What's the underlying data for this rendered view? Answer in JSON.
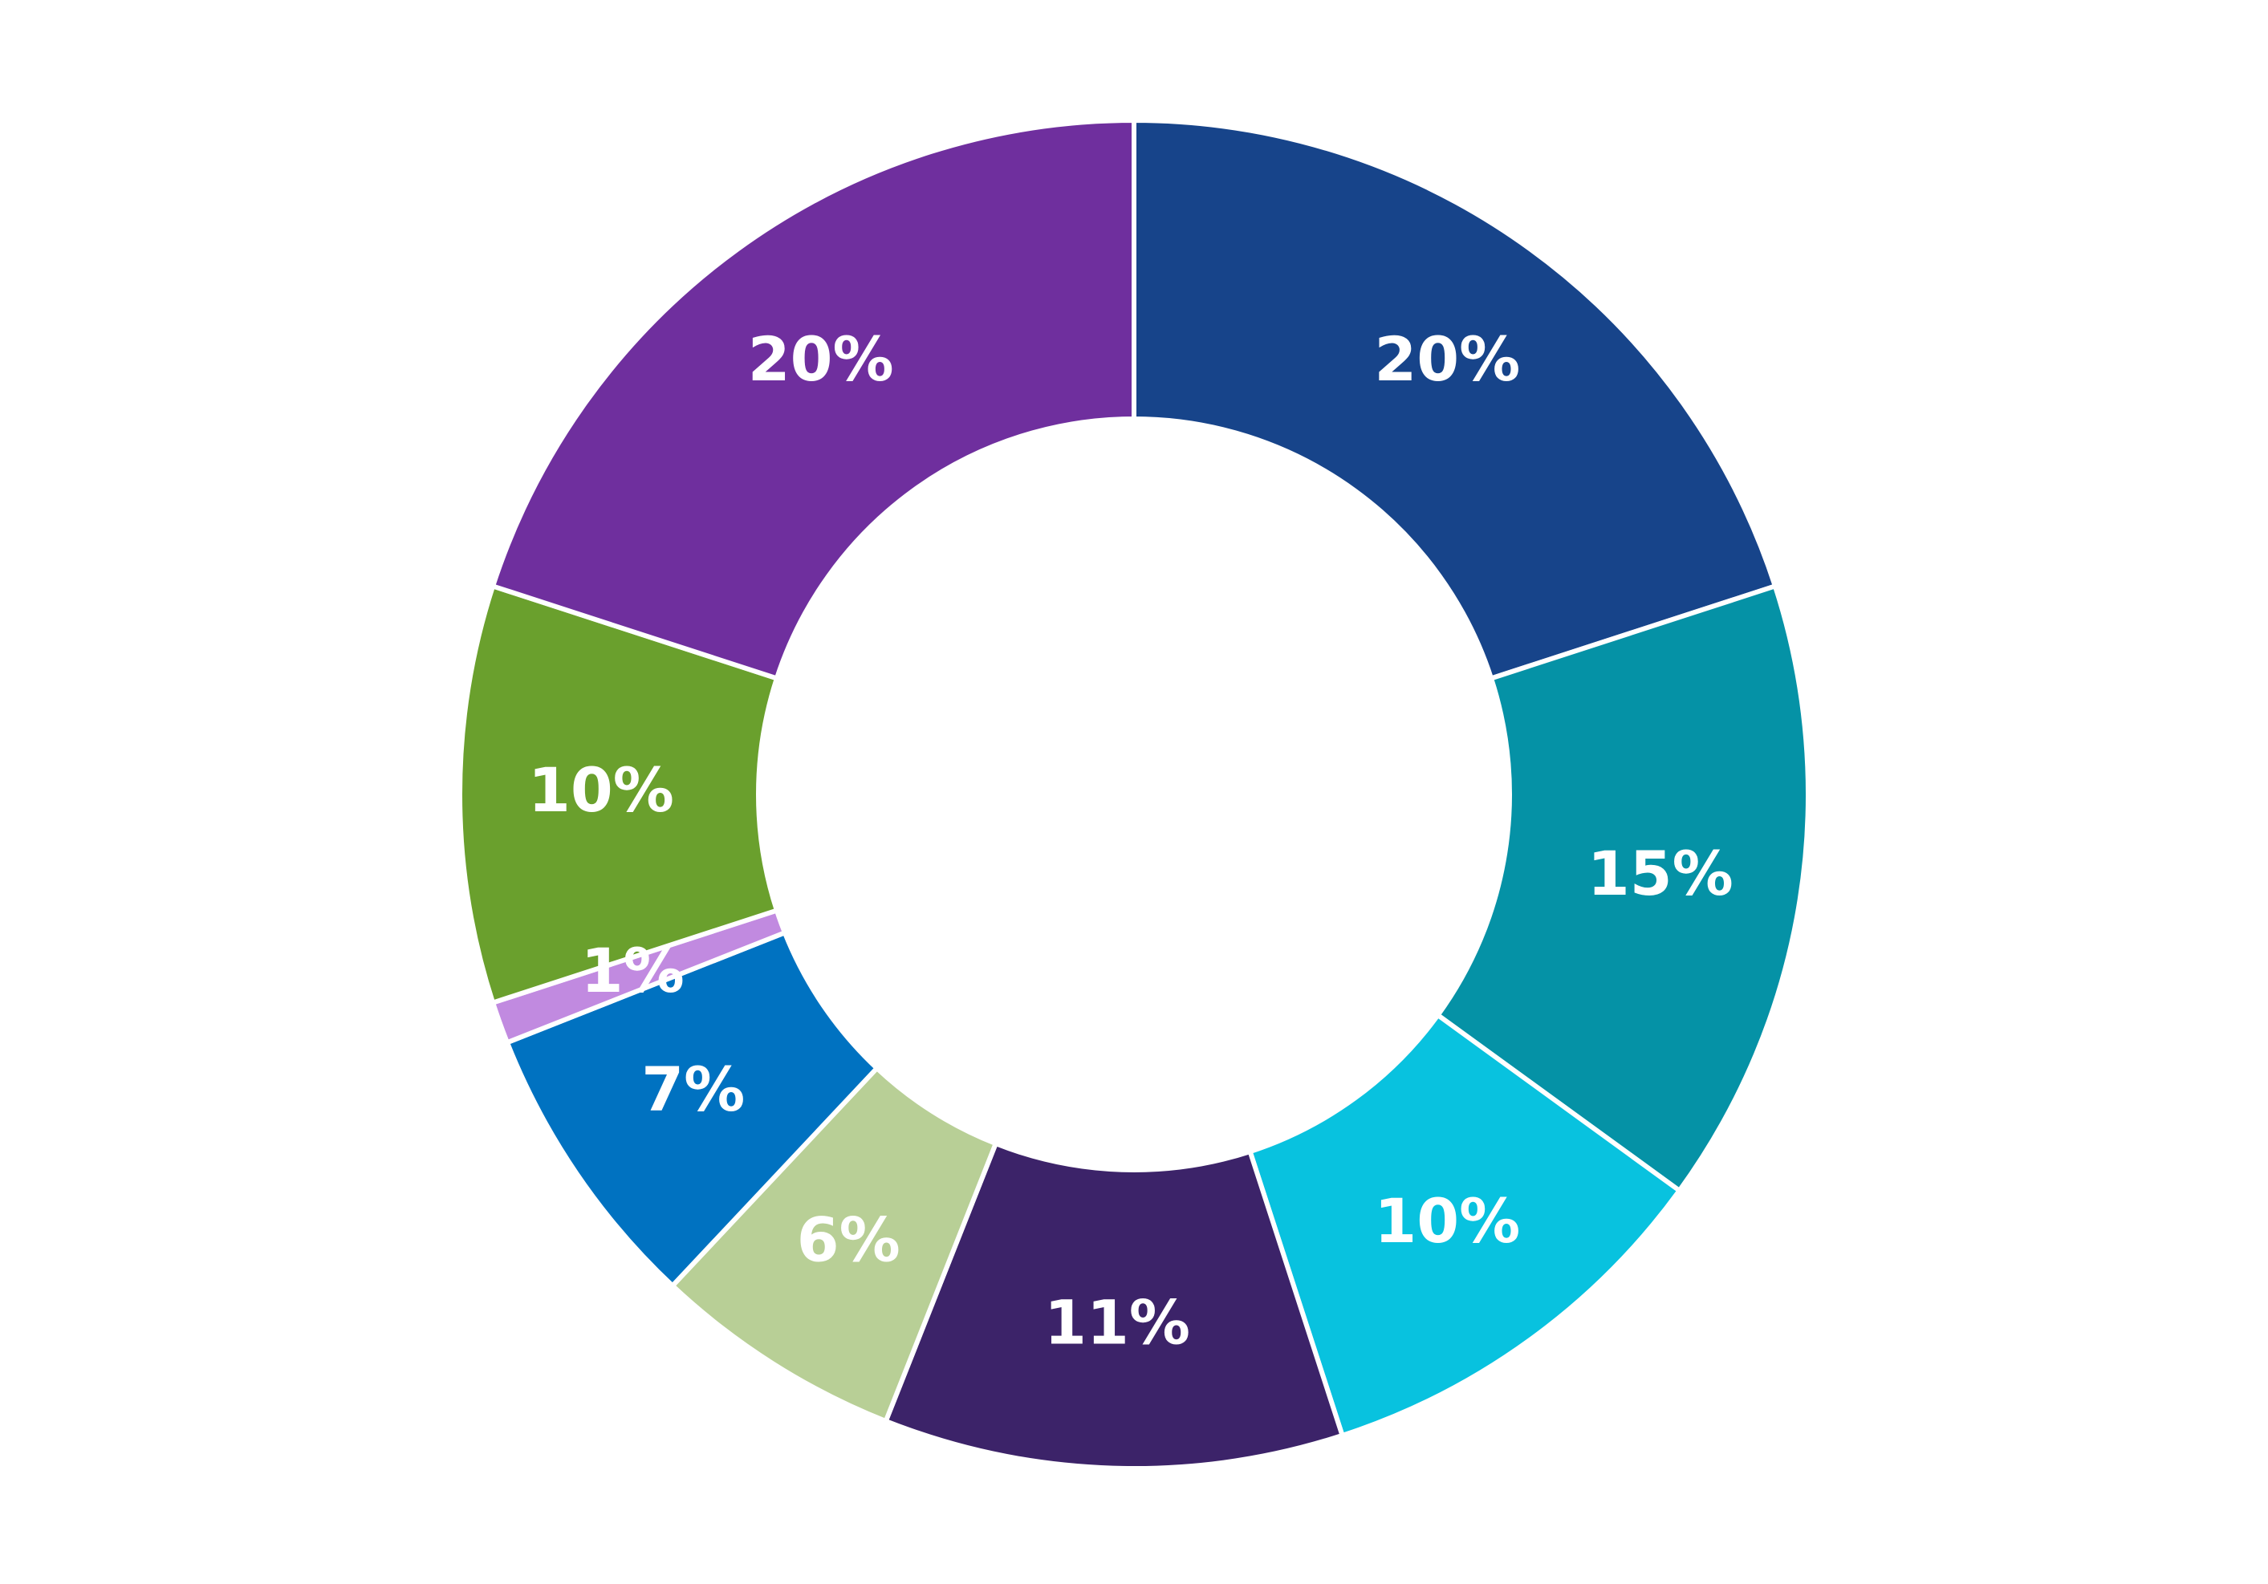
{
  "chart_data": {
    "type": "pie",
    "variant": "donut",
    "title": "",
    "slices": [
      {
        "value": 20,
        "label": "20%",
        "color": "#17448A"
      },
      {
        "value": 15,
        "label": "15%",
        "color": "#0592A6"
      },
      {
        "value": 10,
        "label": "10%",
        "color": "#08C2DF"
      },
      {
        "value": 11,
        "label": "11%",
        "color": "#3C2369"
      },
      {
        "value": 6,
        "label": "6%",
        "color": "#B8CF96"
      },
      {
        "value": 7,
        "label": "7%",
        "color": "#0072C1"
      },
      {
        "value": 1,
        "label": "1%",
        "color": "#C18AE0"
      },
      {
        "value": 10,
        "label": "10%",
        "color": "#6AA02D"
      },
      {
        "value": 20,
        "label": "20%",
        "color": "#6F2F9E"
      }
    ],
    "legend": "none"
  }
}
